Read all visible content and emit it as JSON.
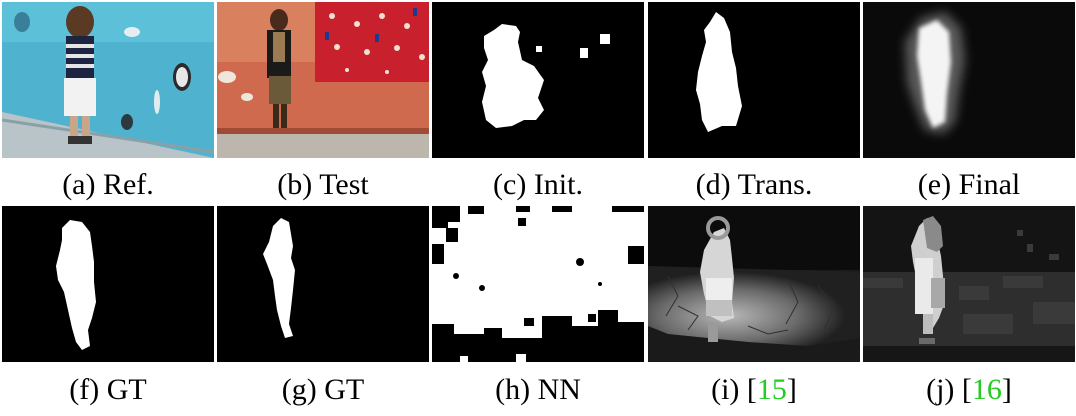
{
  "figure": {
    "row1": [
      {
        "letter": "(a)",
        "label": "Ref."
      },
      {
        "letter": "(b)",
        "label": "Test"
      },
      {
        "letter": "(c)",
        "label": "Init."
      },
      {
        "letter": "(d)",
        "label": "Trans."
      },
      {
        "letter": "(e)",
        "label": "Final"
      }
    ],
    "row2": [
      {
        "letter": "(f)",
        "label": "GT"
      },
      {
        "letter": "(g)",
        "label": "GT"
      },
      {
        "letter": "(h)",
        "label": "NN"
      },
      {
        "letter": "(i)",
        "pre": "[",
        "cite": "15",
        "post": "]"
      },
      {
        "letter": "(j)",
        "pre": "[",
        "cite": "16",
        "post": "]"
      }
    ]
  },
  "colors": {
    "citation": "#22cc22",
    "mask_bg": "#000000",
    "mask_fg": "#ffffff"
  }
}
